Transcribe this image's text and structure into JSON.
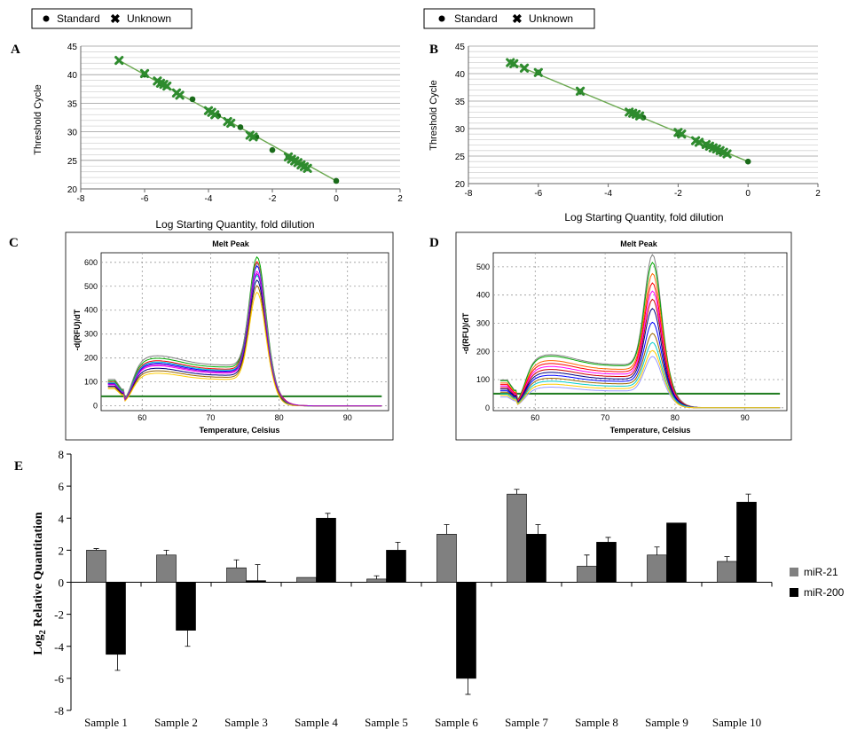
{
  "panels": {
    "A": {
      "letter": "A"
    },
    "B": {
      "letter": "B"
    },
    "C": {
      "letter": "C"
    },
    "D": {
      "letter": "D"
    },
    "E": {
      "letter": "E"
    }
  },
  "colors": {
    "standard_point": "#1a6b1a",
    "unknown_marker": "#2e8b2e",
    "fit_line": "#6aa84f",
    "threshold_line": "#1e7b1e",
    "mir21": "#808080",
    "mir200": "#000000"
  },
  "chart_data": [
    {
      "id": "A",
      "type": "scatter",
      "xlabel": "Log Starting Quantity, fold dilution",
      "ylabel": "Threshold Cycle",
      "xlim": [
        -8,
        2
      ],
      "ylim": [
        20,
        45
      ],
      "xticks": [
        "-8",
        "-6",
        "-4",
        "-2",
        "0",
        "2"
      ],
      "yticks": [
        "20",
        "25",
        "30",
        "35",
        "40",
        "45"
      ],
      "grid": true,
      "legend": {
        "labels": [
          "Standard",
          "Unknown"
        ],
        "icons": [
          "dot",
          "x-mark"
        ],
        "position": "top-left"
      },
      "fit": {
        "x0": -6.8,
        "y0": 42.5,
        "x1": 0,
        "y1": 21.4
      },
      "standard": {
        "x": [
          -6.0,
          -5.5,
          -4.5,
          -3.7,
          -3.0,
          -2.5,
          -2.0,
          -1.5,
          0
        ],
        "y": [
          40.0,
          38.5,
          35.7,
          32.8,
          30.8,
          29.1,
          26.8,
          25.6,
          21.4
        ]
      },
      "unknown": {
        "x": [
          -6.8,
          -6.0,
          -5.6,
          -5.5,
          -5.4,
          -5.3,
          -5.0,
          -4.9,
          -4.0,
          -3.9,
          -3.8,
          -3.4,
          -3.3,
          -2.7,
          -2.6,
          -1.5,
          -1.4,
          -1.3,
          -1.2,
          -1.1,
          -1.0,
          -0.9
        ],
        "y": [
          42.5,
          40.2,
          38.9,
          38.5,
          38.3,
          38.0,
          36.8,
          36.4,
          33.7,
          33.4,
          33.0,
          31.8,
          31.5,
          29.4,
          29.1,
          25.6,
          25.2,
          24.9,
          24.6,
          24.2,
          23.9,
          23.6
        ]
      }
    },
    {
      "id": "B",
      "type": "scatter",
      "xlabel": "Log Starting Quantity, fold dilution",
      "ylabel": "Threshold Cycle",
      "xlim": [
        -8,
        2
      ],
      "ylim": [
        20,
        45
      ],
      "xticks": [
        "-8",
        "-6",
        "-4",
        "-2",
        "0",
        "2"
      ],
      "yticks": [
        "20",
        "25",
        "30",
        "35",
        "40",
        "45"
      ],
      "grid": true,
      "legend": {
        "labels": [
          "Standard",
          "Unknown"
        ],
        "icons": [
          "dot",
          "x-mark"
        ],
        "position": "top-left"
      },
      "fit": {
        "x0": -6.8,
        "y0": 42.0,
        "x1": 0,
        "y1": 24.0
      },
      "standard": {
        "x": [
          -6.0,
          -4.8,
          -3.0,
          -2.0,
          -1.2,
          -0.8,
          0
        ],
        "y": [
          40.2,
          36.7,
          32.0,
          29.0,
          27.0,
          25.8,
          24.0
        ]
      },
      "unknown": {
        "x": [
          -6.8,
          -6.7,
          -6.4,
          -6.0,
          -4.8,
          -3.4,
          -3.3,
          -3.2,
          -3.1,
          -2.0,
          -1.9,
          -1.5,
          -1.4,
          -1.2,
          -1.1,
          -1.0,
          -0.9,
          -0.8,
          -0.7,
          -0.6
        ],
        "y": [
          42.0,
          41.8,
          41.0,
          40.2,
          36.8,
          33.0,
          32.8,
          32.6,
          32.3,
          29.3,
          29.0,
          27.8,
          27.5,
          27.1,
          26.8,
          26.5,
          26.3,
          26.0,
          25.7,
          25.4
        ]
      }
    },
    {
      "id": "C",
      "type": "line",
      "title": "Melt Peak",
      "xlabel": "Temperature, Celsius",
      "ylabel": "-d(RFU)/dT",
      "xlim": [
        54,
        96
      ],
      "ylim": [
        -20,
        640
      ],
      "xticks": [
        "60",
        "70",
        "80",
        "90"
      ],
      "yticks": [
        "0",
        "100",
        "200",
        "300",
        "400",
        "500",
        "600"
      ],
      "threshold": 40,
      "series": [
        {
          "name": "",
          "color": "#ff0000",
          "peak": 600,
          "hump": 180
        },
        {
          "name": "",
          "color": "#0000ff",
          "peak": 580,
          "hump": 170
        },
        {
          "name": "",
          "color": "#00aa00",
          "peak": 615,
          "hump": 190
        },
        {
          "name": "",
          "color": "#ff00ff",
          "peak": 560,
          "hump": 160
        },
        {
          "name": "",
          "color": "#00cccc",
          "peak": 540,
          "hump": 175
        },
        {
          "name": "",
          "color": "#000080",
          "peak": 520,
          "hump": 150
        },
        {
          "name": "",
          "color": "#996600",
          "peak": 500,
          "hump": 140
        },
        {
          "name": "",
          "color": "#808080",
          "peak": 590,
          "hump": 200
        },
        {
          "name": "",
          "color": "#ffcc00",
          "peak": 470,
          "hump": 130
        },
        {
          "name": "",
          "color": "#9900cc",
          "peak": 550,
          "hump": 165
        }
      ]
    },
    {
      "id": "D",
      "type": "line",
      "title": "Melt Peak",
      "xlabel": "Temperature, Celsius",
      "ylabel": "-d(RFU)/dT",
      "xlim": [
        54,
        96
      ],
      "ylim": [
        -10,
        550
      ],
      "xticks": [
        "60",
        "70",
        "80",
        "90"
      ],
      "yticks": [
        "0",
        "100",
        "200",
        "300",
        "400",
        "500"
      ],
      "threshold": 50,
      "series": [
        {
          "name": "",
          "color": "#808080",
          "peak": 540,
          "hump": 180
        },
        {
          "name": "",
          "color": "#00aa00",
          "peak": 510,
          "hump": 175
        },
        {
          "name": "",
          "color": "#ff6600",
          "peak": 470,
          "hump": 160
        },
        {
          "name": "",
          "color": "#ff0000",
          "peak": 440,
          "hump": 150
        },
        {
          "name": "",
          "color": "#ff00ff",
          "peak": 410,
          "hump": 140
        },
        {
          "name": "",
          "color": "#cc0000",
          "peak": 380,
          "hump": 130
        },
        {
          "name": "",
          "color": "#000080",
          "peak": 350,
          "hump": 120
        },
        {
          "name": "",
          "color": "#0000ff",
          "peak": 300,
          "hump": 110
        },
        {
          "name": "",
          "color": "#996600",
          "peak": 260,
          "hump": 100
        },
        {
          "name": "",
          "color": "#00cccc",
          "peak": 230,
          "hump": 90
        },
        {
          "name": "",
          "color": "#9999ff",
          "peak": 180,
          "hump": 70
        },
        {
          "name": "",
          "color": "#ffcc00",
          "peak": 200,
          "hump": 80
        }
      ]
    },
    {
      "id": "E",
      "type": "bar",
      "ylabel_prefix": "Log",
      "ylabel_sub": "2",
      "ylabel_suffix": " Relative  Quantitation",
      "ylim": [
        -8,
        8
      ],
      "yticks": [
        "8",
        "6",
        "4",
        "2",
        "0",
        "-2",
        "-4",
        "-6",
        "-8"
      ],
      "categories": [
        "Sample 1",
        "Sample 2",
        "Sample 3",
        "Sample 4",
        "Sample 5",
        "Sample 6",
        "Sample 7",
        "Sample 8",
        "Sample 9",
        "Sample 10"
      ],
      "series": [
        {
          "name": "miR-21",
          "values": [
            2.0,
            1.7,
            0.9,
            0.3,
            0.2,
            3.0,
            5.5,
            1.0,
            1.7,
            1.3
          ],
          "errors": [
            0.1,
            0.3,
            0.5,
            0.0,
            0.2,
            0.6,
            0.3,
            0.7,
            0.5,
            0.3
          ]
        },
        {
          "name": "miR-200",
          "values": [
            -4.5,
            -3.0,
            0.1,
            4.0,
            2.0,
            -6.0,
            3.0,
            2.5,
            3.7,
            5.0
          ],
          "errors": [
            1.0,
            1.0,
            1.0,
            0.3,
            0.5,
            1.0,
            0.6,
            0.3,
            0.0,
            0.5
          ]
        }
      ],
      "legend": {
        "position": "right"
      }
    }
  ]
}
